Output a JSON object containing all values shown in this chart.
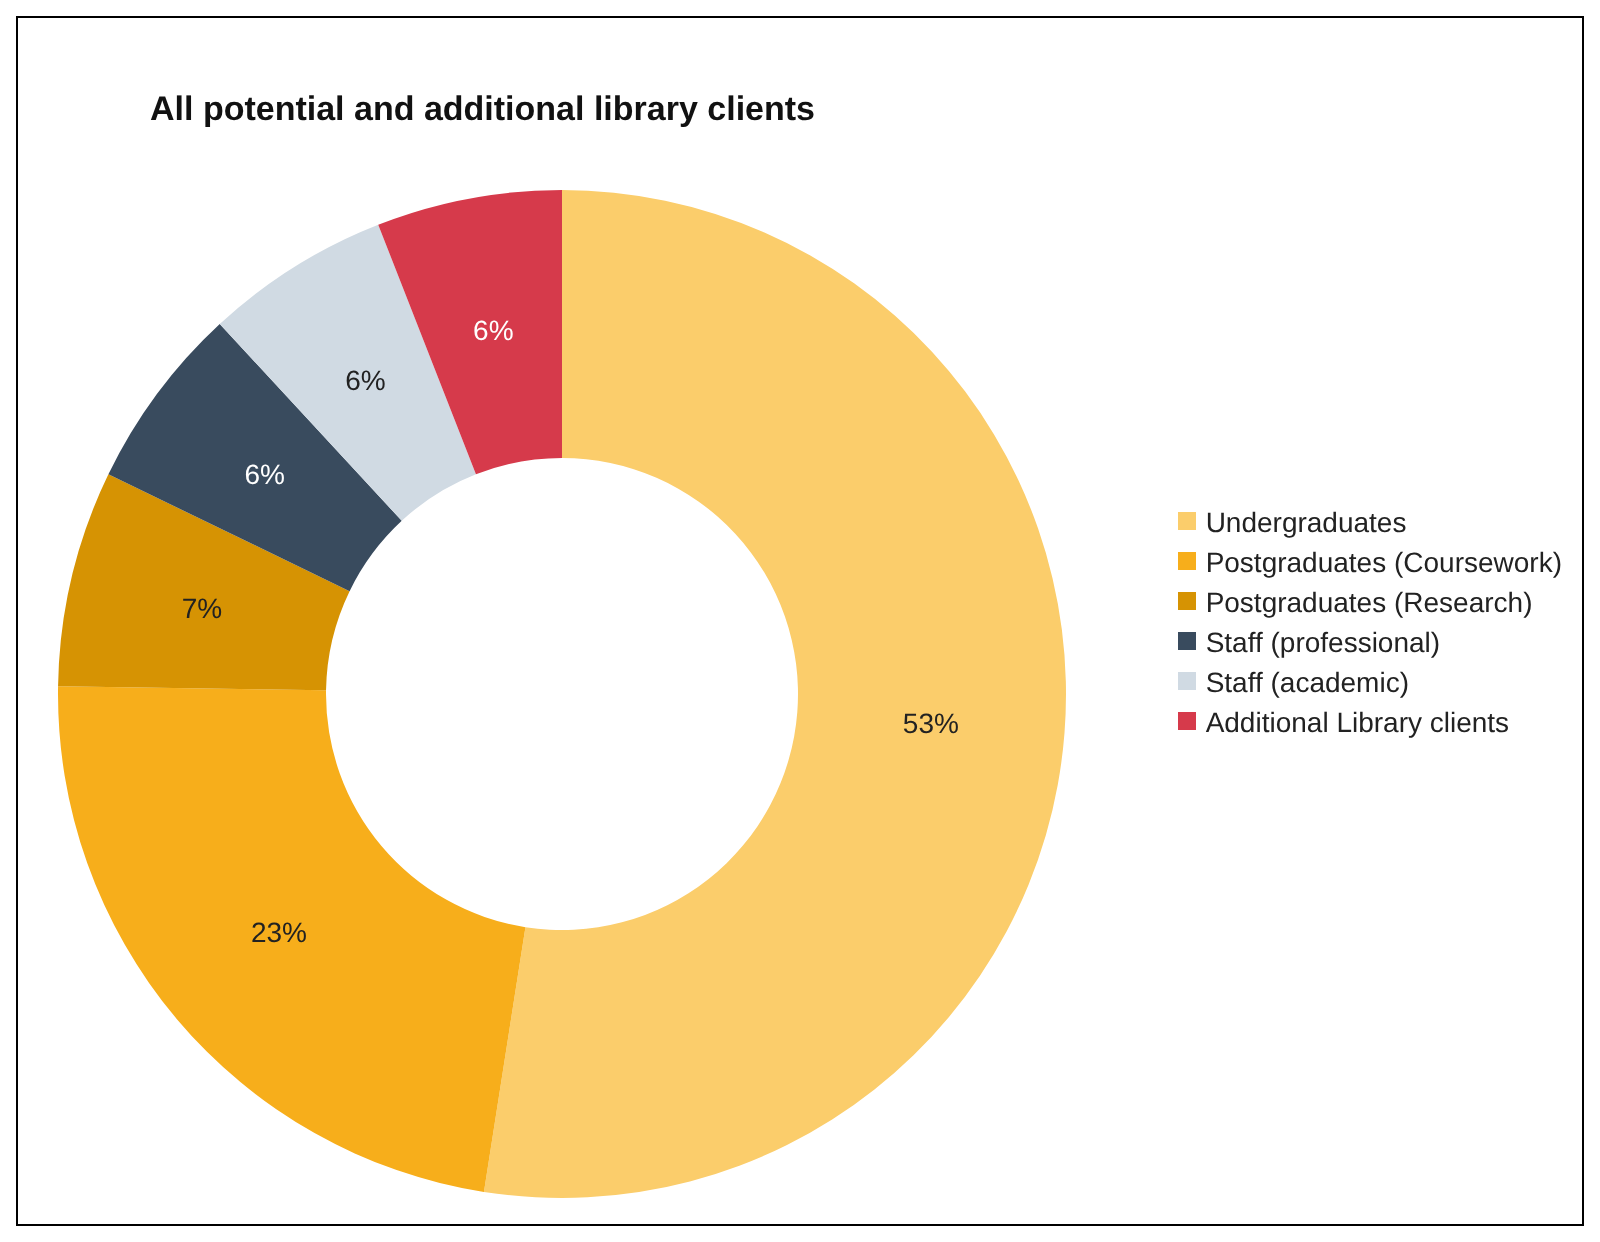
{
  "chart_data": {
    "type": "donut",
    "title": "All potential and additional library clients",
    "categories": [
      "Undergraduates",
      "Postgraduates (Coursework)",
      "Postgraduates (Research)",
      "Staff (professional)",
      "Staff (academic)",
      "Additional Library clients"
    ],
    "values": [
      53,
      23,
      7,
      6,
      6,
      6
    ],
    "colors": [
      "#fbcd6b",
      "#f7ae1b",
      "#d69303",
      "#394b5e",
      "#d0dae3",
      "#d63a4b"
    ],
    "value_labels": [
      "53%",
      "23%",
      "7%",
      "6%",
      "6%",
      "6%"
    ],
    "legend": "right"
  }
}
